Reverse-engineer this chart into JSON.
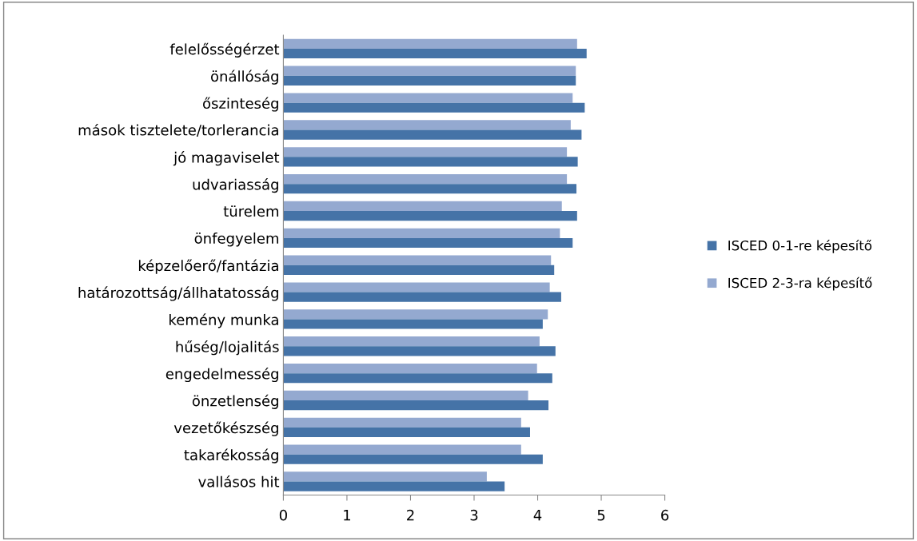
{
  "chart_data": {
    "type": "bar",
    "orientation": "horizontal",
    "categories": [
      "felelősségérzet",
      "önállóság",
      "őszinteség",
      "mások tisztelete/torlerancia",
      "jó magaviselet",
      "udvariasság",
      "türelem",
      "önfegyelem",
      "képzelőerő/fantázia",
      "határozottság/állhatatosság",
      "kemény munka",
      "hűség/lojalitás",
      "engedelmesség",
      "önzetlenség",
      "vezetőkészség",
      "takarékosság",
      "vallásos hit"
    ],
    "series": [
      {
        "name": "ISCED 2-3-ra képesítő",
        "color": "#94a9d0",
        "values": [
          4.62,
          4.6,
          4.55,
          4.52,
          4.46,
          4.46,
          4.38,
          4.35,
          4.21,
          4.19,
          4.16,
          4.03,
          3.99,
          3.85,
          3.74,
          3.74,
          3.2
        ]
      },
      {
        "name": "ISCED 0-1-re képesítő",
        "color": "#4573a7",
        "values": [
          4.77,
          4.6,
          4.74,
          4.69,
          4.63,
          4.61,
          4.62,
          4.55,
          4.26,
          4.37,
          4.08,
          4.28,
          4.23,
          4.17,
          3.88,
          4.08,
          3.48
        ]
      }
    ],
    "xlim": [
      0,
      6
    ],
    "xticks": [
      0,
      1,
      2,
      3,
      4,
      5,
      6
    ],
    "grid": false,
    "legend": "right"
  }
}
